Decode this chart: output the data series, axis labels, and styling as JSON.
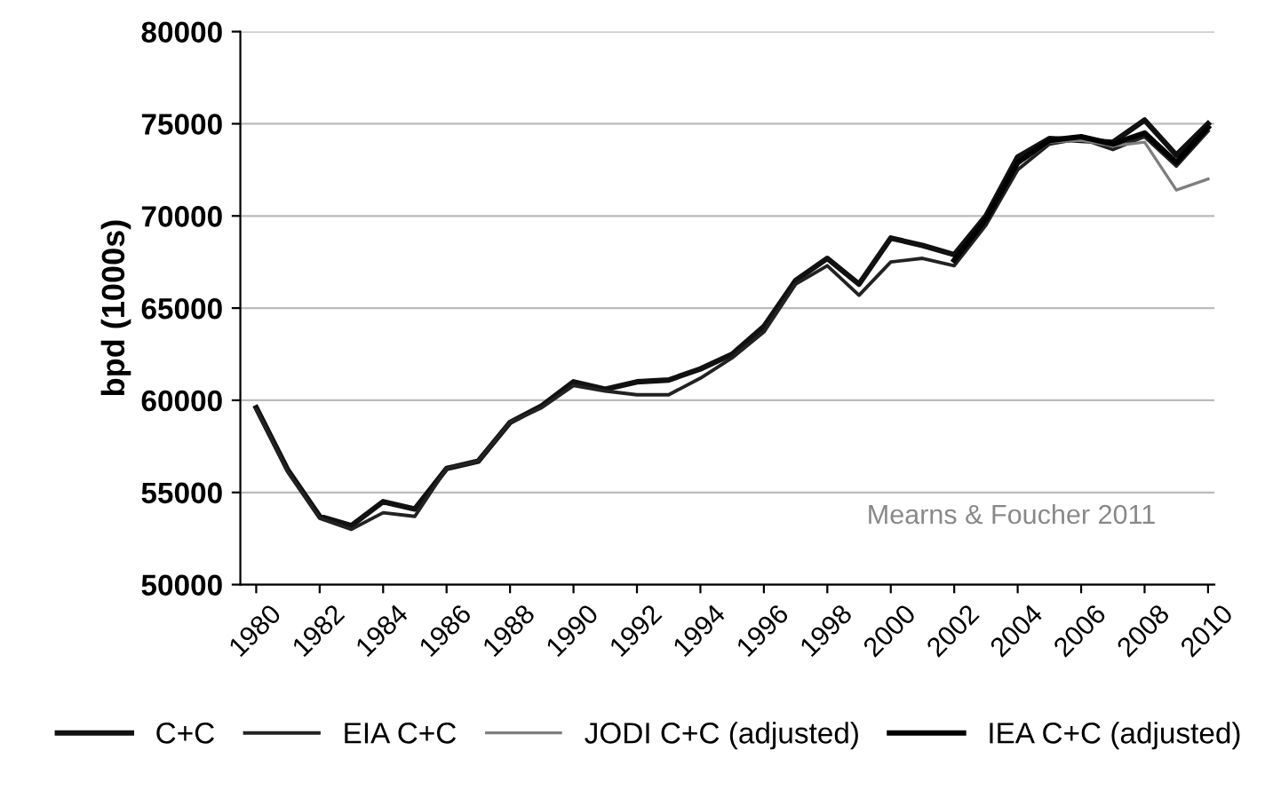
{
  "chart_data": {
    "type": "line",
    "ylabel": "bpd (1000s)",
    "x": [
      1980,
      1981,
      1982,
      1983,
      1984,
      1985,
      1986,
      1987,
      1988,
      1989,
      1990,
      1991,
      1992,
      1993,
      1994,
      1995,
      1996,
      1997,
      1998,
      1999,
      2000,
      2001,
      2002,
      2003,
      2004,
      2005,
      2006,
      2007,
      2008,
      2009,
      2010
    ],
    "series": [
      {
        "name": "C+C",
        "color": "#111111",
        "values": [
          59600,
          56200,
          53700,
          53200,
          54500,
          54100,
          56300,
          56700,
          58800,
          59700,
          61000,
          60600,
          61000,
          61100,
          61700,
          62500,
          64000,
          66500,
          67700,
          66300,
          68800,
          68400,
          67900,
          70000,
          73200,
          74200,
          74100,
          74000,
          75200,
          73300,
          75000
        ]
      },
      {
        "name": "EIA C+C",
        "color": "#222222",
        "values": [
          59500,
          56100,
          53600,
          53000,
          53900,
          53700,
          56300,
          56700,
          58800,
          59600,
          60800,
          60500,
          60300,
          60300,
          61200,
          62300,
          63700,
          66300,
          67300,
          65700,
          67500,
          67700,
          67300,
          69500,
          72500,
          73900,
          74200,
          73600,
          74300,
          72700,
          74600
        ]
      },
      {
        "name": "JODI C+C (adjusted)",
        "color": "#7f7f7f",
        "values": [
          null,
          null,
          null,
          null,
          null,
          null,
          null,
          null,
          null,
          null,
          null,
          null,
          null,
          null,
          null,
          null,
          null,
          null,
          null,
          null,
          null,
          null,
          67600,
          69700,
          72800,
          74000,
          74100,
          73800,
          74000,
          71400,
          72000
        ]
      },
      {
        "name": "IEA C+C (adjusted)",
        "color": "#000000",
        "values": [
          null,
          null,
          null,
          null,
          null,
          null,
          null,
          null,
          null,
          null,
          null,
          null,
          null,
          null,
          null,
          null,
          null,
          null,
          null,
          null,
          null,
          null,
          67600,
          69800,
          72900,
          74100,
          74300,
          73900,
          74500,
          72900,
          74800
        ]
      }
    ],
    "xlim": [
      1979.5,
      2010.2
    ],
    "xticks": [
      1980,
      1982,
      1984,
      1986,
      1988,
      1990,
      1992,
      1994,
      1996,
      1998,
      2000,
      2002,
      2004,
      2006,
      2008,
      2010
    ],
    "ylim": [
      50000,
      80000
    ],
    "yticks": [
      50000,
      55000,
      60000,
      65000,
      70000,
      75000,
      80000
    ],
    "grid": "y",
    "legend": "bottom",
    "annotations": [
      "Mearns & Foucher 2011"
    ]
  }
}
